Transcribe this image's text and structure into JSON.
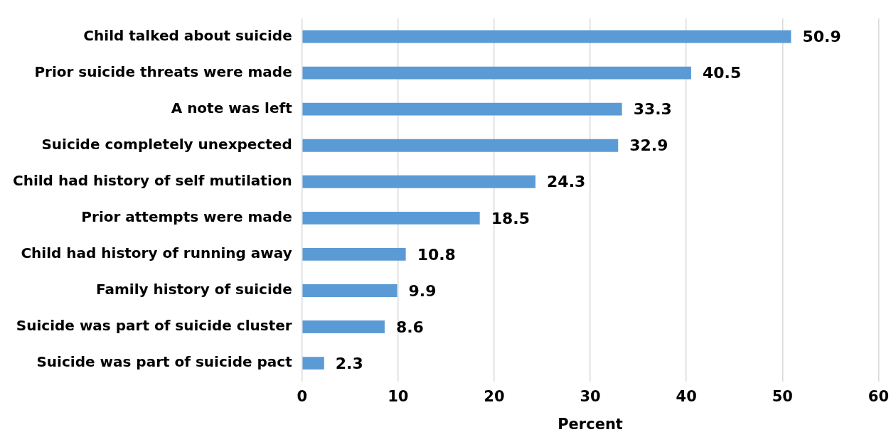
{
  "chart_data": {
    "type": "bar",
    "orientation": "horizontal",
    "xlabel": "Percent",
    "categories": [
      "Child talked about suicide",
      "Prior suicide threats were made",
      "A note was left",
      "Suicide completely unexpected",
      "Child had history of self mutilation",
      "Prior attempts were made",
      "Child had history of running away",
      "Family history of suicide",
      "Suicide was part of suicide cluster",
      "Suicide was part of suicide pact"
    ],
    "values": [
      50.9,
      40.5,
      33.3,
      32.9,
      24.3,
      18.5,
      10.8,
      9.9,
      8.6,
      2.3
    ],
    "color": "#5b9bd5",
    "xlim": [
      0,
      60
    ],
    "xticks": [
      0,
      10,
      20,
      30,
      40,
      50,
      60
    ],
    "grid": "x",
    "data_labels": true,
    "legend": false
  }
}
